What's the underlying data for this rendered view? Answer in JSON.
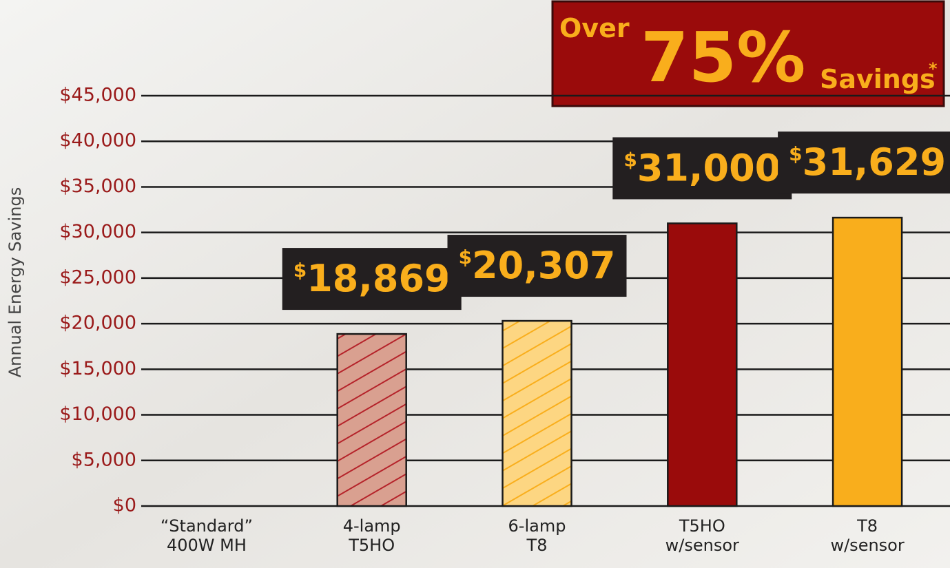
{
  "chart_data": {
    "type": "bar",
    "y_axis_label": "Annual Energy Savings",
    "categories": [
      [
        "“Standard”",
        "400W MH"
      ],
      [
        "4-lamp",
        "T5HO"
      ],
      [
        "6-lamp",
        "T8"
      ],
      [
        "T5HO",
        "w/sensor"
      ],
      [
        "T8",
        "w/sensor"
      ]
    ],
    "values": [
      0,
      18869,
      20307,
      31000,
      31629
    ],
    "value_labels": [
      null,
      "$18,869",
      "$20,307",
      "$31,000",
      "$31,629"
    ],
    "colors": [
      "#d9a090",
      "#d9a090",
      "#fdd682",
      "#9a0b0b",
      "#f9ae1c"
    ],
    "hatch": [
      false,
      true,
      true,
      false,
      false
    ],
    "hatch_colors": [
      "#b5232a",
      "#b5232a",
      "#f9ae1c",
      "#9a0b0b",
      "#f9ae1c"
    ],
    "ylim": [
      0,
      45000
    ],
    "yticks": [
      {
        "value": 0,
        "label": "$0"
      },
      {
        "value": 5000,
        "label": "$5,000"
      },
      {
        "value": 10000,
        "label": "$10,000"
      },
      {
        "value": 15000,
        "label": "$15,000"
      },
      {
        "value": 20000,
        "label": "$20,000"
      },
      {
        "value": 25000,
        "label": "$25,000"
      },
      {
        "value": 30000,
        "label": "$30,000"
      },
      {
        "value": 35000,
        "label": "$35,000"
      },
      {
        "value": 40000,
        "label": "$40,000"
      },
      {
        "value": 45000,
        "label": "$45,000"
      }
    ],
    "grid": true,
    "banner": {
      "over": "Over",
      "percent": "75%",
      "savings": "Savings",
      "footnote_mark": "*"
    }
  }
}
